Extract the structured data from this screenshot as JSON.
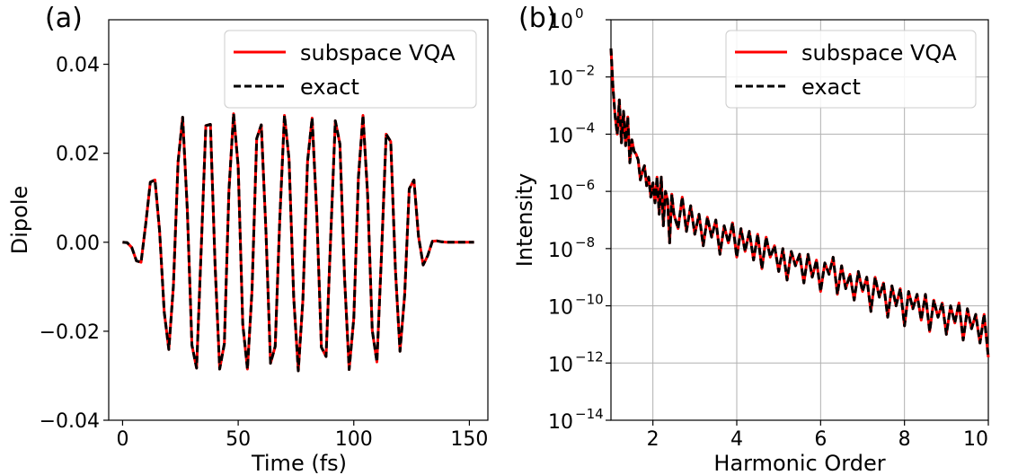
{
  "chart_data": [
    {
      "type": "line",
      "panel_label": "(a)",
      "xlabel": "Time (fs)",
      "ylabel": "Dipole",
      "xlim": [
        -6,
        158
      ],
      "ylim": [
        -0.04,
        0.05
      ],
      "xticks": [
        0,
        50,
        100,
        150
      ],
      "xtick_labels": [
        "0",
        "50",
        "100",
        "150"
      ],
      "yticks": [
        -0.04,
        -0.02,
        0.0,
        0.02,
        0.04
      ],
      "ytick_labels": [
        "−0.04",
        "−0.02",
        "0.00",
        "0.02",
        "0.04"
      ],
      "grid": false,
      "legend": {
        "position": "top-right",
        "entries": [
          "subspace VQA",
          "exact"
        ]
      },
      "series": [
        {
          "name": "subspace VQA",
          "color": "#ff0000",
          "style": "solid"
        },
        {
          "name": "exact",
          "color": "#000000",
          "style": "dashed"
        }
      ],
      "x": [
        0,
        2,
        4,
        6,
        8,
        10,
        12,
        14,
        16,
        18,
        20,
        22,
        24,
        26,
        28,
        30,
        32,
        34,
        36,
        38,
        40,
        42,
        44,
        46,
        48,
        50,
        52,
        54,
        56,
        58,
        60,
        62,
        64,
        66,
        68,
        70,
        72,
        74,
        76,
        78,
        80,
        82,
        84,
        86,
        88,
        90,
        92,
        94,
        96,
        98,
        100,
        102,
        104,
        106,
        108,
        110,
        112,
        114,
        116,
        118,
        120,
        122,
        124,
        126,
        128,
        130,
        132,
        134,
        136,
        138,
        140,
        142,
        144,
        146,
        148,
        150,
        152
      ],
      "y": [
        0.0,
        -0.0001,
        -0.0012,
        -0.0042,
        -0.0045,
        0.0041,
        0.0135,
        0.014,
        0.0026,
        -0.0157,
        -0.0241,
        -0.0098,
        0.0181,
        0.0281,
        0.0072,
        -0.0231,
        -0.0283,
        -0.0017,
        0.0262,
        0.0265,
        -0.0052,
        -0.0285,
        -0.0228,
        0.0116,
        0.0289,
        0.017,
        -0.0184,
        -0.0285,
        -0.0108,
        0.0233,
        0.0264,
        0.0025,
        -0.0272,
        -0.0234,
        0.0052,
        0.0285,
        0.0187,
        -0.0124,
        -0.0289,
        -0.013,
        0.0182,
        0.0279,
        0.0063,
        -0.0236,
        -0.0257,
        0.0009,
        0.0273,
        0.0221,
        -0.008,
        -0.0286,
        -0.017,
        0.0145,
        0.0285,
        0.0105,
        -0.0198,
        -0.0269,
        -0.0028,
        0.0243,
        0.0226,
        -0.0062,
        -0.0245,
        -0.0118,
        0.012,
        0.014,
        0.0013,
        -0.0051,
        -0.003,
        0.0002,
        0.0003,
        0.0001,
        0.0,
        0.0,
        0.0,
        0.0,
        0.0,
        0.0,
        0.0
      ]
    },
    {
      "type": "line",
      "panel_label": "(b)",
      "xlabel": "Harmonic Order",
      "ylabel": "Intensity",
      "xlim": [
        1,
        10
      ],
      "yscale": "log",
      "ylim_exponent": [
        -14,
        0
      ],
      "xticks": [
        2,
        4,
        6,
        8,
        10
      ],
      "xtick_labels": [
        "2",
        "4",
        "6",
        "8",
        "10"
      ],
      "yticks_exponent": [
        -14,
        -12,
        -10,
        -8,
        -6,
        -4,
        -2,
        0
      ],
      "ytick_base": "10",
      "ytick_exponent_labels": [
        "−14",
        "−12",
        "−10",
        "−8",
        "−6",
        "−4",
        "−2",
        "0"
      ],
      "grid": true,
      "legend": {
        "position": "top-right",
        "entries": [
          "subspace VQA",
          "exact"
        ]
      },
      "series": [
        {
          "name": "subspace VQA",
          "color": "#ff0000",
          "style": "solid"
        },
        {
          "name": "exact",
          "color": "#000000",
          "style": "dashed"
        }
      ],
      "x": [
        1.0,
        1.05,
        1.1,
        1.15,
        1.2,
        1.25,
        1.3,
        1.35,
        1.4,
        1.45,
        1.5,
        1.55,
        1.6,
        1.65,
        1.7,
        1.75,
        1.8,
        1.85,
        1.9,
        1.95,
        2.0,
        2.05,
        2.1,
        2.15,
        2.2,
        2.25,
        2.3,
        2.35,
        2.4,
        2.45,
        2.5,
        2.6,
        2.7,
        2.8,
        2.9,
        3.0,
        3.1,
        3.2,
        3.3,
        3.4,
        3.5,
        3.6,
        3.7,
        3.8,
        3.9,
        4.0,
        4.1,
        4.2,
        4.3,
        4.4,
        4.5,
        4.6,
        4.7,
        4.8,
        4.9,
        5.0,
        5.1,
        5.2,
        5.3,
        5.4,
        5.5,
        5.6,
        5.7,
        5.8,
        5.9,
        6.0,
        6.1,
        6.2,
        6.3,
        6.4,
        6.5,
        6.6,
        6.7,
        6.8,
        6.9,
        7.0,
        7.1,
        7.2,
        7.3,
        7.4,
        7.5,
        7.6,
        7.7,
        7.8,
        7.9,
        8.0,
        8.1,
        8.2,
        8.3,
        8.4,
        8.5,
        8.6,
        8.7,
        8.8,
        8.9,
        9.0,
        9.1,
        9.2,
        9.3,
        9.4,
        9.5,
        9.6,
        9.7,
        9.8,
        9.9,
        10.0
      ],
      "y_log10": [
        -1.0,
        -2.4,
        -3.4,
        -4.0,
        -2.8,
        -4.3,
        -3.2,
        -4.4,
        -3.4,
        -5.0,
        -4.2,
        -4.6,
        -4.7,
        -4.9,
        -5.6,
        -5.3,
        -5.1,
        -5.8,
        -5.5,
        -6.2,
        -5.7,
        -6.4,
        -5.5,
        -6.8,
        -5.5,
        -7.2,
        -6.0,
        -6.3,
        -7.8,
        -6.1,
        -6.8,
        -7.3,
        -6.2,
        -7.4,
        -6.5,
        -7.5,
        -6.8,
        -7.9,
        -6.9,
        -7.6,
        -7.0,
        -8.2,
        -7.2,
        -7.8,
        -7.1,
        -8.3,
        -7.3,
        -8.1,
        -7.4,
        -8.4,
        -7.5,
        -8.7,
        -7.6,
        -8.3,
        -7.9,
        -8.8,
        -8.0,
        -9.1,
        -8.1,
        -8.6,
        -8.2,
        -9.2,
        -8.2,
        -9.0,
        -8.4,
        -9.5,
        -8.5,
        -8.9,
        -8.3,
        -9.6,
        -8.6,
        -9.4,
        -8.9,
        -9.8,
        -8.8,
        -9.5,
        -9.0,
        -10.2,
        -9.0,
        -9.7,
        -9.2,
        -10.4,
        -9.3,
        -10.0,
        -9.4,
        -10.7,
        -9.5,
        -10.1,
        -9.6,
        -10.5,
        -9.6,
        -10.9,
        -9.8,
        -10.4,
        -9.9,
        -11.0,
        -10.0,
        -10.6,
        -9.9,
        -11.2,
        -10.1,
        -10.8,
        -10.3,
        -11.3,
        -10.3,
        -11.8
      ]
    }
  ]
}
